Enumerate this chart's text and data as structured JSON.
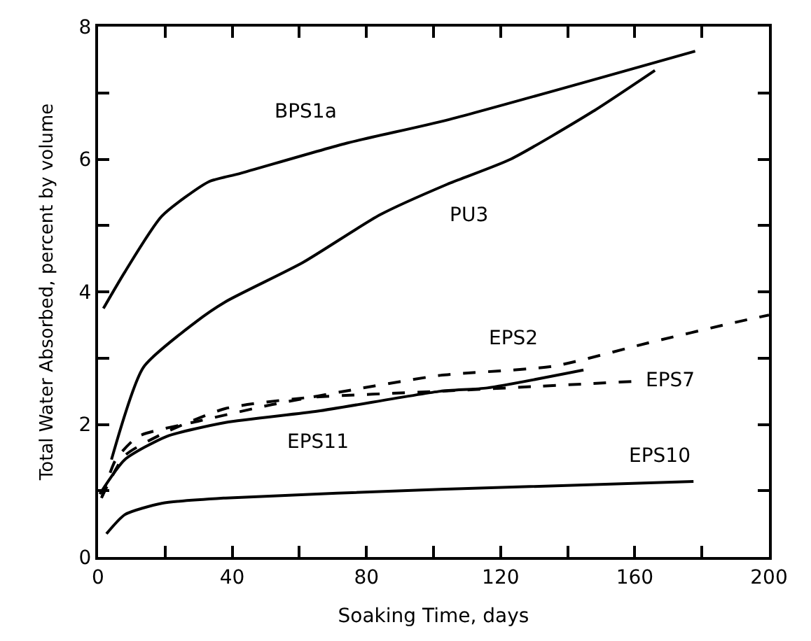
{
  "chart_data": {
    "type": "line",
    "xlabel": "Soaking Time, days",
    "ylabel": "Total Water Absorbed, percent by volume",
    "xlim": [
      0,
      200
    ],
    "ylim": [
      0,
      8
    ],
    "xticks": [
      0,
      {
        "value": 20,
        "label": null
      },
      40,
      {
        "value": 60,
        "label": null
      },
      80,
      {
        "value": 100,
        "label": null
      },
      120,
      {
        "value": 140,
        "label": null
      },
      160,
      {
        "value": 180,
        "label": null
      },
      200
    ],
    "yticks": [
      0,
      {
        "value": 1,
        "label": null
      },
      2,
      {
        "value": 3,
        "label": null
      },
      4,
      {
        "value": 5,
        "label": null
      },
      6,
      {
        "value": 7,
        "label": null
      },
      8
    ],
    "legend": false,
    "marker": "none",
    "series": [
      {
        "name": "BPS1a",
        "color": "#000000",
        "line_style": "solid",
        "x": [
          1.6,
          8,
          19,
          33,
          42,
          74,
          104,
          178
        ],
        "values": [
          3.75,
          4.3,
          5.14,
          5.66,
          5.78,
          6.24,
          6.59,
          7.63
        ]
      },
      {
        "name": "PU3",
        "color": "#000000",
        "line_style": "solid",
        "x": [
          4,
          13.5,
          29,
          38,
          61,
          84,
          104,
          123,
          147.5,
          166
        ],
        "values": [
          1.47,
          2.86,
          3.54,
          3.85,
          4.44,
          5.16,
          5.62,
          6.0,
          6.72,
          7.34
        ]
      },
      {
        "name": "EPS2",
        "color": "#000000",
        "line_style": "dashed",
        "x": [
          1.2,
          5.3,
          12,
          30,
          52,
          79,
          102,
          136,
          164,
          190,
          200
        ],
        "values": [
          0.91,
          1.47,
          1.82,
          2.05,
          2.3,
          2.55,
          2.74,
          2.88,
          3.23,
          3.54,
          3.65
        ]
      },
      {
        "name": "EPS7",
        "color": "#000000",
        "line_style": "dashed",
        "x": [
          1,
          8,
          20.5,
          38,
          61.5,
          102,
          129.5,
          160
        ],
        "values": [
          0.89,
          1.53,
          1.89,
          2.24,
          2.4,
          2.5,
          2.57,
          2.65
        ]
      },
      {
        "name": "EPS11",
        "color": "#000000",
        "line_style": "solid",
        "x": [
          0.5,
          8,
          20.5,
          38,
          65.5,
          102,
          116,
          144.7
        ],
        "values": [
          0.95,
          1.47,
          1.82,
          2.03,
          2.2,
          2.5,
          2.55,
          2.82
        ]
      },
      {
        "name": "EPS10",
        "color": "#000000",
        "line_style": "solid",
        "x": [
          2.5,
          8,
          19,
          38,
          102,
          177.5
        ],
        "values": [
          0.35,
          0.64,
          0.81,
          0.89,
          1.02,
          1.14
        ]
      }
    ]
  }
}
